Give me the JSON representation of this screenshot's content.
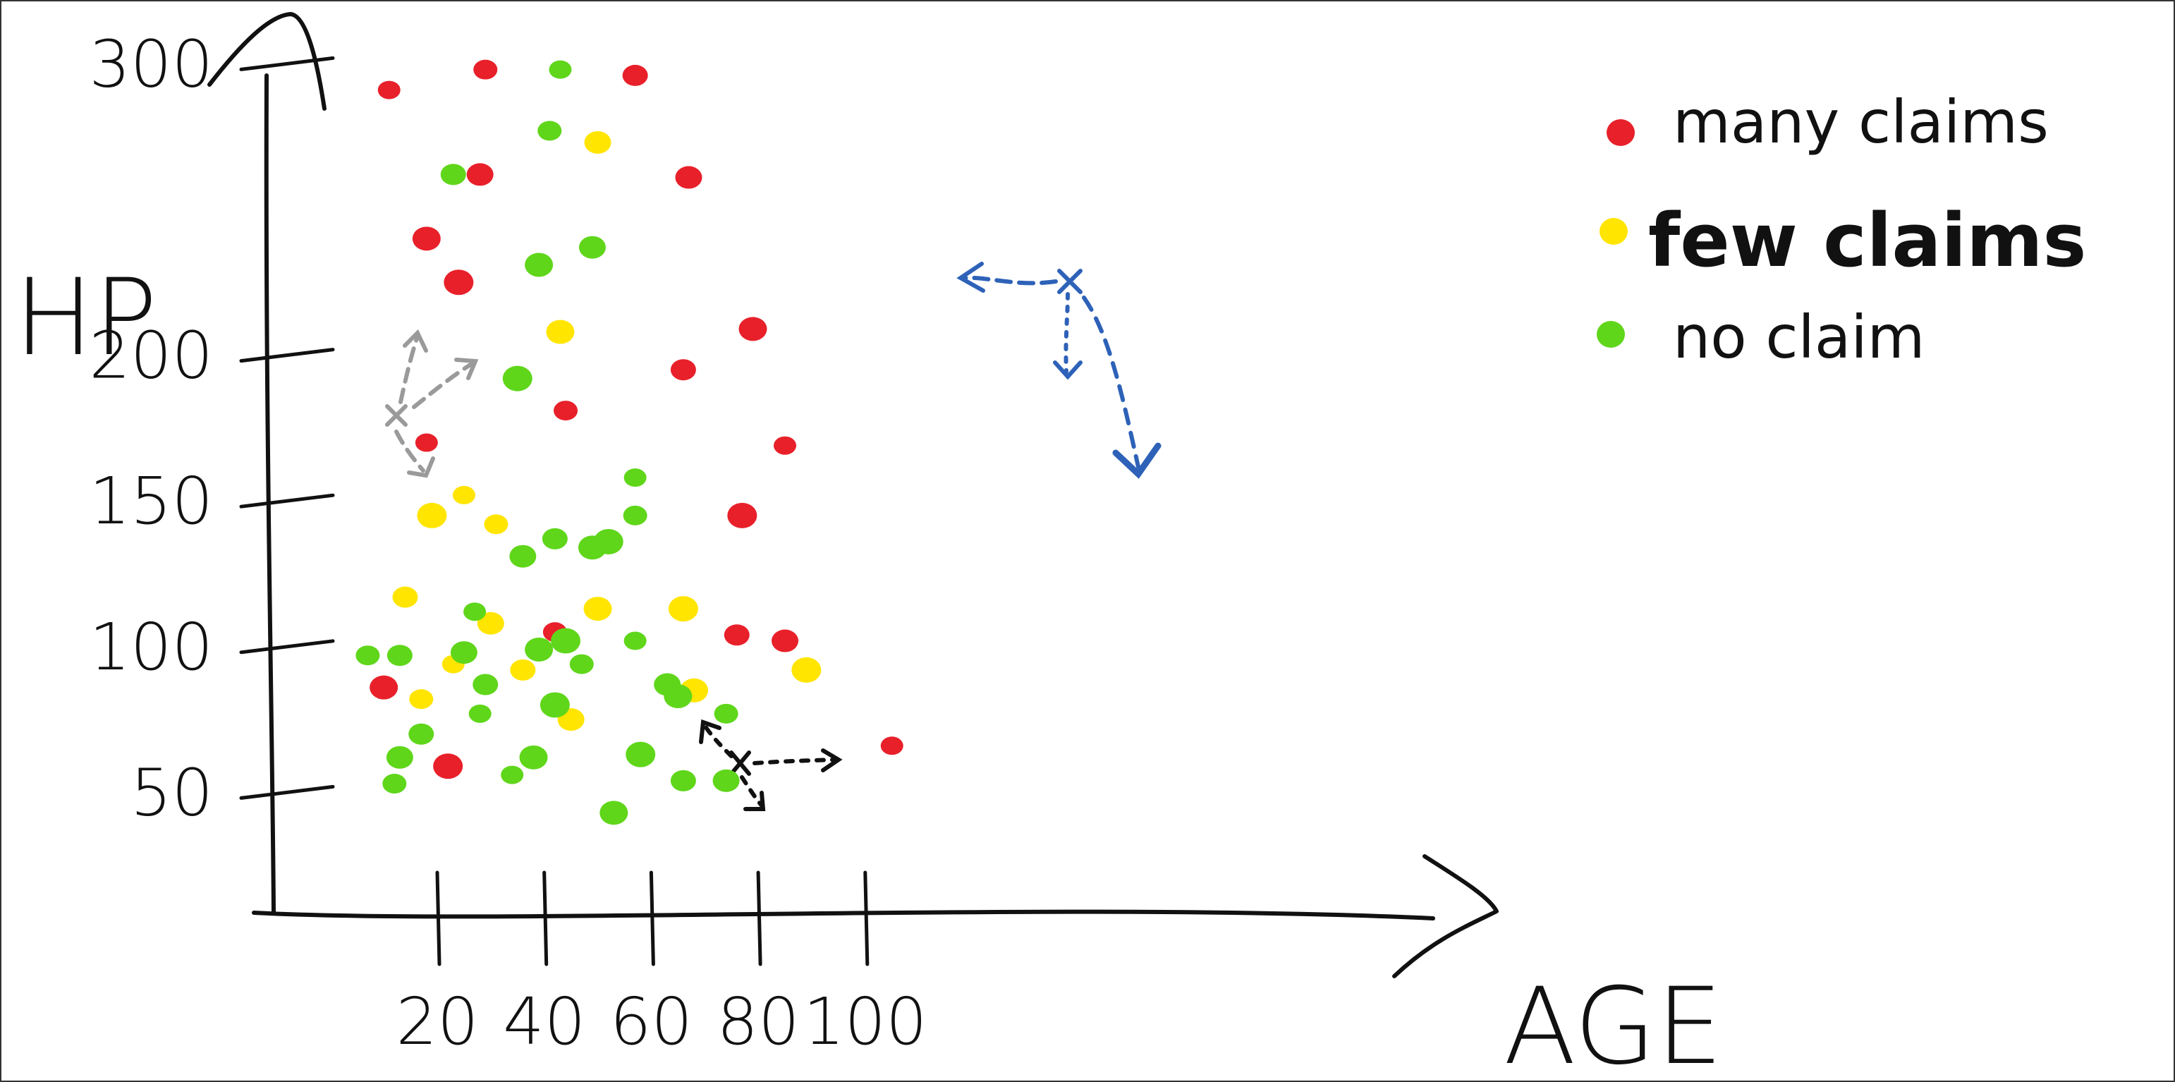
{
  "chart_data": {
    "type": "scatter",
    "title": "",
    "xlabel": "AGE",
    "ylabel": "HP",
    "x_ticks": [
      "20",
      "40",
      "60",
      "80",
      "100"
    ],
    "y_ticks": [
      "50",
      "100",
      "150",
      "200",
      "300"
    ],
    "xlim": [
      4,
      120
    ],
    "ylim": [
      0,
      330
    ],
    "grid": false,
    "legend_position": "top-right",
    "legend": [
      {
        "label": "many claims",
        "color": "#e8202a"
      },
      {
        "label": "few claims",
        "color": "#ffe500"
      },
      {
        "label": "no claim",
        "color": "#5fd61a"
      }
    ],
    "series": [
      {
        "name": "many claims",
        "color": "#e8202a",
        "points": [
          {
            "x": 11,
            "y": 291
          },
          {
            "x": 29,
            "y": 298
          },
          {
            "x": 57,
            "y": 296
          },
          {
            "x": 28,
            "y": 262
          },
          {
            "x": 18,
            "y": 240
          },
          {
            "x": 24,
            "y": 225
          },
          {
            "x": 18,
            "y": 170
          },
          {
            "x": 44,
            "y": 181
          },
          {
            "x": 66,
            "y": 195
          },
          {
            "x": 67,
            "y": 261
          },
          {
            "x": 79,
            "y": 209
          },
          {
            "x": 77,
            "y": 145
          },
          {
            "x": 85,
            "y": 169
          },
          {
            "x": 42,
            "y": 105
          },
          {
            "x": 76,
            "y": 104
          },
          {
            "x": 85,
            "y": 102
          },
          {
            "x": 10,
            "y": 86
          },
          {
            "x": 22,
            "y": 59
          },
          {
            "x": 105,
            "y": 66
          }
        ]
      },
      {
        "name": "few claims",
        "color": "#ffe500",
        "points": [
          {
            "x": 50,
            "y": 273
          },
          {
            "x": 43,
            "y": 208
          },
          {
            "x": 19,
            "y": 145
          },
          {
            "x": 25,
            "y": 152
          },
          {
            "x": 31,
            "y": 142
          },
          {
            "x": 14,
            "y": 117
          },
          {
            "x": 30,
            "y": 108
          },
          {
            "x": 50,
            "y": 113
          },
          {
            "x": 66,
            "y": 113
          },
          {
            "x": 23,
            "y": 94
          },
          {
            "x": 17,
            "y": 82
          },
          {
            "x": 36,
            "y": 92
          },
          {
            "x": 45,
            "y": 75
          },
          {
            "x": 68,
            "y": 85
          },
          {
            "x": 89,
            "y": 92
          }
        ]
      },
      {
        "name": "no claim",
        "color": "#5fd61a",
        "points": [
          {
            "x": 43,
            "y": 298
          },
          {
            "x": 41,
            "y": 277
          },
          {
            "x": 23,
            "y": 262
          },
          {
            "x": 49,
            "y": 237
          },
          {
            "x": 39,
            "y": 231
          },
          {
            "x": 35,
            "y": 192
          },
          {
            "x": 57,
            "y": 158
          },
          {
            "x": 57,
            "y": 145
          },
          {
            "x": 42,
            "y": 137
          },
          {
            "x": 36,
            "y": 131
          },
          {
            "x": 49,
            "y": 134
          },
          {
            "x": 52,
            "y": 136
          },
          {
            "x": 27,
            "y": 112
          },
          {
            "x": 7,
            "y": 97
          },
          {
            "x": 13,
            "y": 97
          },
          {
            "x": 25,
            "y": 98
          },
          {
            "x": 39,
            "y": 99
          },
          {
            "x": 44,
            "y": 102
          },
          {
            "x": 57,
            "y": 102
          },
          {
            "x": 47,
            "y": 94
          },
          {
            "x": 29,
            "y": 87
          },
          {
            "x": 63,
            "y": 87
          },
          {
            "x": 65,
            "y": 83
          },
          {
            "x": 42,
            "y": 80
          },
          {
            "x": 28,
            "y": 77
          },
          {
            "x": 74,
            "y": 77
          },
          {
            "x": 17,
            "y": 70
          },
          {
            "x": 13,
            "y": 62
          },
          {
            "x": 38,
            "y": 62
          },
          {
            "x": 58,
            "y": 63
          },
          {
            "x": 34,
            "y": 56
          },
          {
            "x": 12,
            "y": 53
          },
          {
            "x": 66,
            "y": 54
          },
          {
            "x": 74,
            "y": 54
          },
          {
            "x": 53,
            "y": 43
          }
        ]
      }
    ]
  }
}
